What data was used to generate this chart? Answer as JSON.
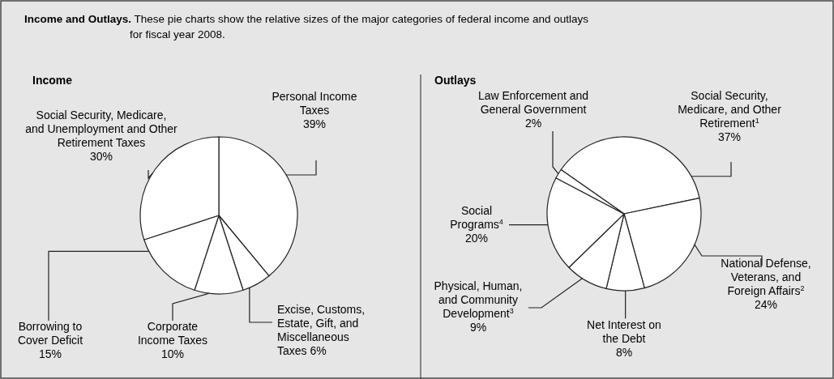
{
  "chart_data": [
    {
      "type": "pie",
      "title": "Income",
      "annotations": [
        "Income and Outlays.",
        "These pie charts show the relative sizes of the major categories of federal income and outlays for fiscal year 2008."
      ],
      "categories": [
        "Personal Income Taxes",
        "Excise, Customs, Estate, Gift, and Miscellaneous Taxes",
        "Corporate Income Taxes",
        "Borrowing to Cover Deficit",
        "Social Security, Medicare, and Unemployment and Other Retirement Taxes"
      ],
      "values": [
        39,
        6,
        10,
        15,
        30
      ],
      "value_labels": [
        "39%",
        "6%",
        "10%",
        "15%",
        "30%"
      ],
      "colors": [
        "#ffffff",
        "#ffffff",
        "#ffffff",
        "#ffffff",
        "#ffffff"
      ]
    },
    {
      "type": "pie",
      "title": "Outlays",
      "categories": [
        "Social Security, Medicare, and Other Retirement$^{1}$",
        "National Defense, Veterans, and Foreign Affairs$^{2}$",
        "Net Interest on the Debt",
        "Physical, Human, and Community Development$^{3}$",
        "Social Programs$^{4}$",
        "Law Enforcement and General Government"
      ],
      "values": [
        37,
        24,
        8,
        9,
        20,
        2
      ],
      "value_labels": [
        "37%",
        "24%",
        "8%",
        "9%",
        "20%",
        "2%"
      ],
      "colors": [
        "#ffffff",
        "#ffffff",
        "#ffffff",
        "#ffffff",
        "#ffffff",
        "#ffffff"
      ]
    }
  ]
}
